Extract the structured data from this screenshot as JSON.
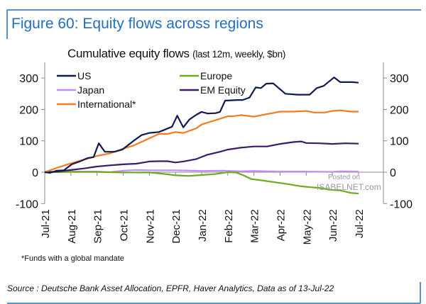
{
  "figure_title": "Figure 60: Equity flows across regions",
  "footnote": "*Funds with a global mandate",
  "source": "Source : Deutsche Bank Asset Allocation, EPFR, Haver Analytics, Data as of 13-Jul-22",
  "watermark": {
    "line1": "Posted on",
    "line2": "ISABELNET.com"
  },
  "chart_data": {
    "type": "line",
    "title": "Cumulative equity flows",
    "subtitle": "(last 12m, weekly, $bn)",
    "xlabel": "",
    "ylabel": "",
    "ylim": [
      -100,
      350
    ],
    "yticks": [
      -100,
      0,
      100,
      200,
      300
    ],
    "y_axis_sides": [
      "left",
      "right"
    ],
    "xticks": [
      "Jul-21",
      "Aug-21",
      "Sep-21",
      "Oct-21",
      "Nov-21",
      "Dec-21",
      "Jan-22",
      "Feb-22",
      "Mar-22",
      "Apr-22",
      "May-22",
      "Jun-22",
      "Jul-22"
    ],
    "xtick_dates": [
      "2021-07-01",
      "2021-08-01",
      "2021-09-01",
      "2021-10-01",
      "2021-11-01",
      "2021-12-01",
      "2022-01-01",
      "2022-02-01",
      "2022-03-01",
      "2022-04-01",
      "2022-05-01",
      "2022-06-01",
      "2022-07-01"
    ],
    "grid": false,
    "legend_placement": "top-left",
    "series": [
      {
        "name": "US",
        "color": "#0f1a4f",
        "points": [
          [
            "2021-07-01",
            0
          ],
          [
            "2021-07-07",
            -2
          ],
          [
            "2021-07-15",
            5
          ],
          [
            "2021-07-23",
            6
          ],
          [
            "2021-08-02",
            25
          ],
          [
            "2021-08-12",
            35
          ],
          [
            "2021-08-20",
            45
          ],
          [
            "2021-08-27",
            48
          ],
          [
            "2021-09-03",
            92
          ],
          [
            "2021-09-10",
            65
          ],
          [
            "2021-09-21",
            65
          ],
          [
            "2021-09-30",
            72
          ],
          [
            "2021-10-13",
            100
          ],
          [
            "2021-10-22",
            118
          ],
          [
            "2021-11-01",
            125
          ],
          [
            "2021-11-12",
            128
          ],
          [
            "2021-11-27",
            145
          ],
          [
            "2021-12-03",
            180
          ],
          [
            "2021-12-10",
            143
          ],
          [
            "2021-12-17",
            168
          ],
          [
            "2021-12-25",
            183
          ],
          [
            "2022-01-01",
            192
          ],
          [
            "2022-01-08",
            187
          ],
          [
            "2022-01-17",
            188
          ],
          [
            "2022-01-22",
            192
          ],
          [
            "2022-01-28",
            228
          ],
          [
            "2022-02-12",
            230
          ],
          [
            "2022-02-18",
            230
          ],
          [
            "2022-02-26",
            238
          ],
          [
            "2022-03-03",
            270
          ],
          [
            "2022-03-09",
            268
          ],
          [
            "2022-03-15",
            282
          ],
          [
            "2022-03-23",
            283
          ],
          [
            "2022-04-07",
            250
          ],
          [
            "2022-04-21",
            247
          ],
          [
            "2022-05-05",
            247
          ],
          [
            "2022-05-13",
            268
          ],
          [
            "2022-05-21",
            275
          ],
          [
            "2022-06-03",
            302
          ],
          [
            "2022-06-10",
            287
          ],
          [
            "2022-06-24",
            287
          ],
          [
            "2022-07-01",
            285
          ]
        ]
      },
      {
        "name": "Europe",
        "color": "#6aab1f",
        "points": [
          [
            "2021-07-01",
            0
          ],
          [
            "2021-08-01",
            1
          ],
          [
            "2021-09-01",
            1
          ],
          [
            "2021-10-01",
            -1
          ],
          [
            "2021-11-01",
            -1
          ],
          [
            "2021-11-16",
            -5
          ],
          [
            "2021-12-01",
            -10
          ],
          [
            "2021-12-16",
            -12
          ],
          [
            "2022-01-01",
            -9
          ],
          [
            "2022-01-16",
            -6
          ],
          [
            "2022-02-01",
            0
          ],
          [
            "2022-02-10",
            -1
          ],
          [
            "2022-02-19",
            -10
          ],
          [
            "2022-02-28",
            -22
          ],
          [
            "2022-03-10",
            -26
          ],
          [
            "2022-03-25",
            -32
          ],
          [
            "2022-04-10",
            -38
          ],
          [
            "2022-04-25",
            -45
          ],
          [
            "2022-05-07",
            -48
          ],
          [
            "2022-05-16",
            -50
          ],
          [
            "2022-05-28",
            -56
          ],
          [
            "2022-06-10",
            -58
          ],
          [
            "2022-06-22",
            -66
          ],
          [
            "2022-07-01",
            -68
          ]
        ]
      },
      {
        "name": "Japan",
        "color": "#c48bff",
        "points": [
          [
            "2021-07-01",
            0
          ],
          [
            "2021-08-01",
            2
          ],
          [
            "2021-09-01",
            2
          ],
          [
            "2021-09-16",
            0
          ],
          [
            "2021-10-01",
            5
          ],
          [
            "2021-10-16",
            7
          ],
          [
            "2021-11-01",
            6
          ],
          [
            "2021-12-01",
            6
          ],
          [
            "2022-01-01",
            4
          ],
          [
            "2022-01-25",
            5
          ],
          [
            "2022-02-16",
            3
          ],
          [
            "2022-03-01",
            4
          ],
          [
            "2022-04-01",
            2
          ],
          [
            "2022-05-01",
            2
          ],
          [
            "2022-06-01",
            1
          ],
          [
            "2022-06-10",
            3
          ],
          [
            "2022-07-01",
            2
          ]
        ]
      },
      {
        "name": "EM Equity",
        "color": "#3a1b6d",
        "points": [
          [
            "2021-07-01",
            0
          ],
          [
            "2021-07-16",
            2
          ],
          [
            "2021-08-01",
            7
          ],
          [
            "2021-08-16",
            12
          ],
          [
            "2021-09-01",
            18
          ],
          [
            "2021-09-16",
            22
          ],
          [
            "2021-10-01",
            25
          ],
          [
            "2021-10-16",
            27
          ],
          [
            "2021-11-01",
            34
          ],
          [
            "2021-11-12",
            35
          ],
          [
            "2021-11-22",
            35
          ],
          [
            "2021-12-01",
            31
          ],
          [
            "2021-12-10",
            34
          ],
          [
            "2021-12-25",
            42
          ],
          [
            "2022-01-07",
            55
          ],
          [
            "2022-01-22",
            65
          ],
          [
            "2022-02-01",
            72
          ],
          [
            "2022-02-16",
            78
          ],
          [
            "2022-03-01",
            82
          ],
          [
            "2022-03-16",
            82
          ],
          [
            "2022-04-01",
            90
          ],
          [
            "2022-04-16",
            96
          ],
          [
            "2022-04-25",
            98
          ],
          [
            "2022-05-01",
            93
          ],
          [
            "2022-05-16",
            92
          ],
          [
            "2022-06-01",
            90
          ],
          [
            "2022-06-16",
            92
          ],
          [
            "2022-07-01",
            91
          ]
        ]
      },
      {
        "name": "International*",
        "color": "#f47b20",
        "points": [
          [
            "2021-07-01",
            0
          ],
          [
            "2021-07-16",
            15
          ],
          [
            "2021-08-01",
            28
          ],
          [
            "2021-08-16",
            40
          ],
          [
            "2021-09-01",
            52
          ],
          [
            "2021-09-16",
            60
          ],
          [
            "2021-10-01",
            75
          ],
          [
            "2021-10-13",
            85
          ],
          [
            "2021-11-01",
            108
          ],
          [
            "2021-11-12",
            122
          ],
          [
            "2021-11-22",
            122
          ],
          [
            "2021-12-01",
            128
          ],
          [
            "2021-12-10",
            125
          ],
          [
            "2021-12-25",
            140
          ],
          [
            "2022-01-01",
            152
          ],
          [
            "2022-01-16",
            165
          ],
          [
            "2022-02-01",
            178
          ],
          [
            "2022-02-07",
            178
          ],
          [
            "2022-02-16",
            182
          ],
          [
            "2022-03-01",
            177
          ],
          [
            "2022-03-16",
            185
          ],
          [
            "2022-04-01",
            193
          ],
          [
            "2022-04-16",
            193
          ],
          [
            "2022-05-01",
            195
          ],
          [
            "2022-05-10",
            190
          ],
          [
            "2022-05-22",
            190
          ],
          [
            "2022-06-01",
            195
          ],
          [
            "2022-06-10",
            197
          ],
          [
            "2022-06-22",
            193
          ],
          [
            "2022-07-01",
            193
          ]
        ]
      }
    ]
  }
}
